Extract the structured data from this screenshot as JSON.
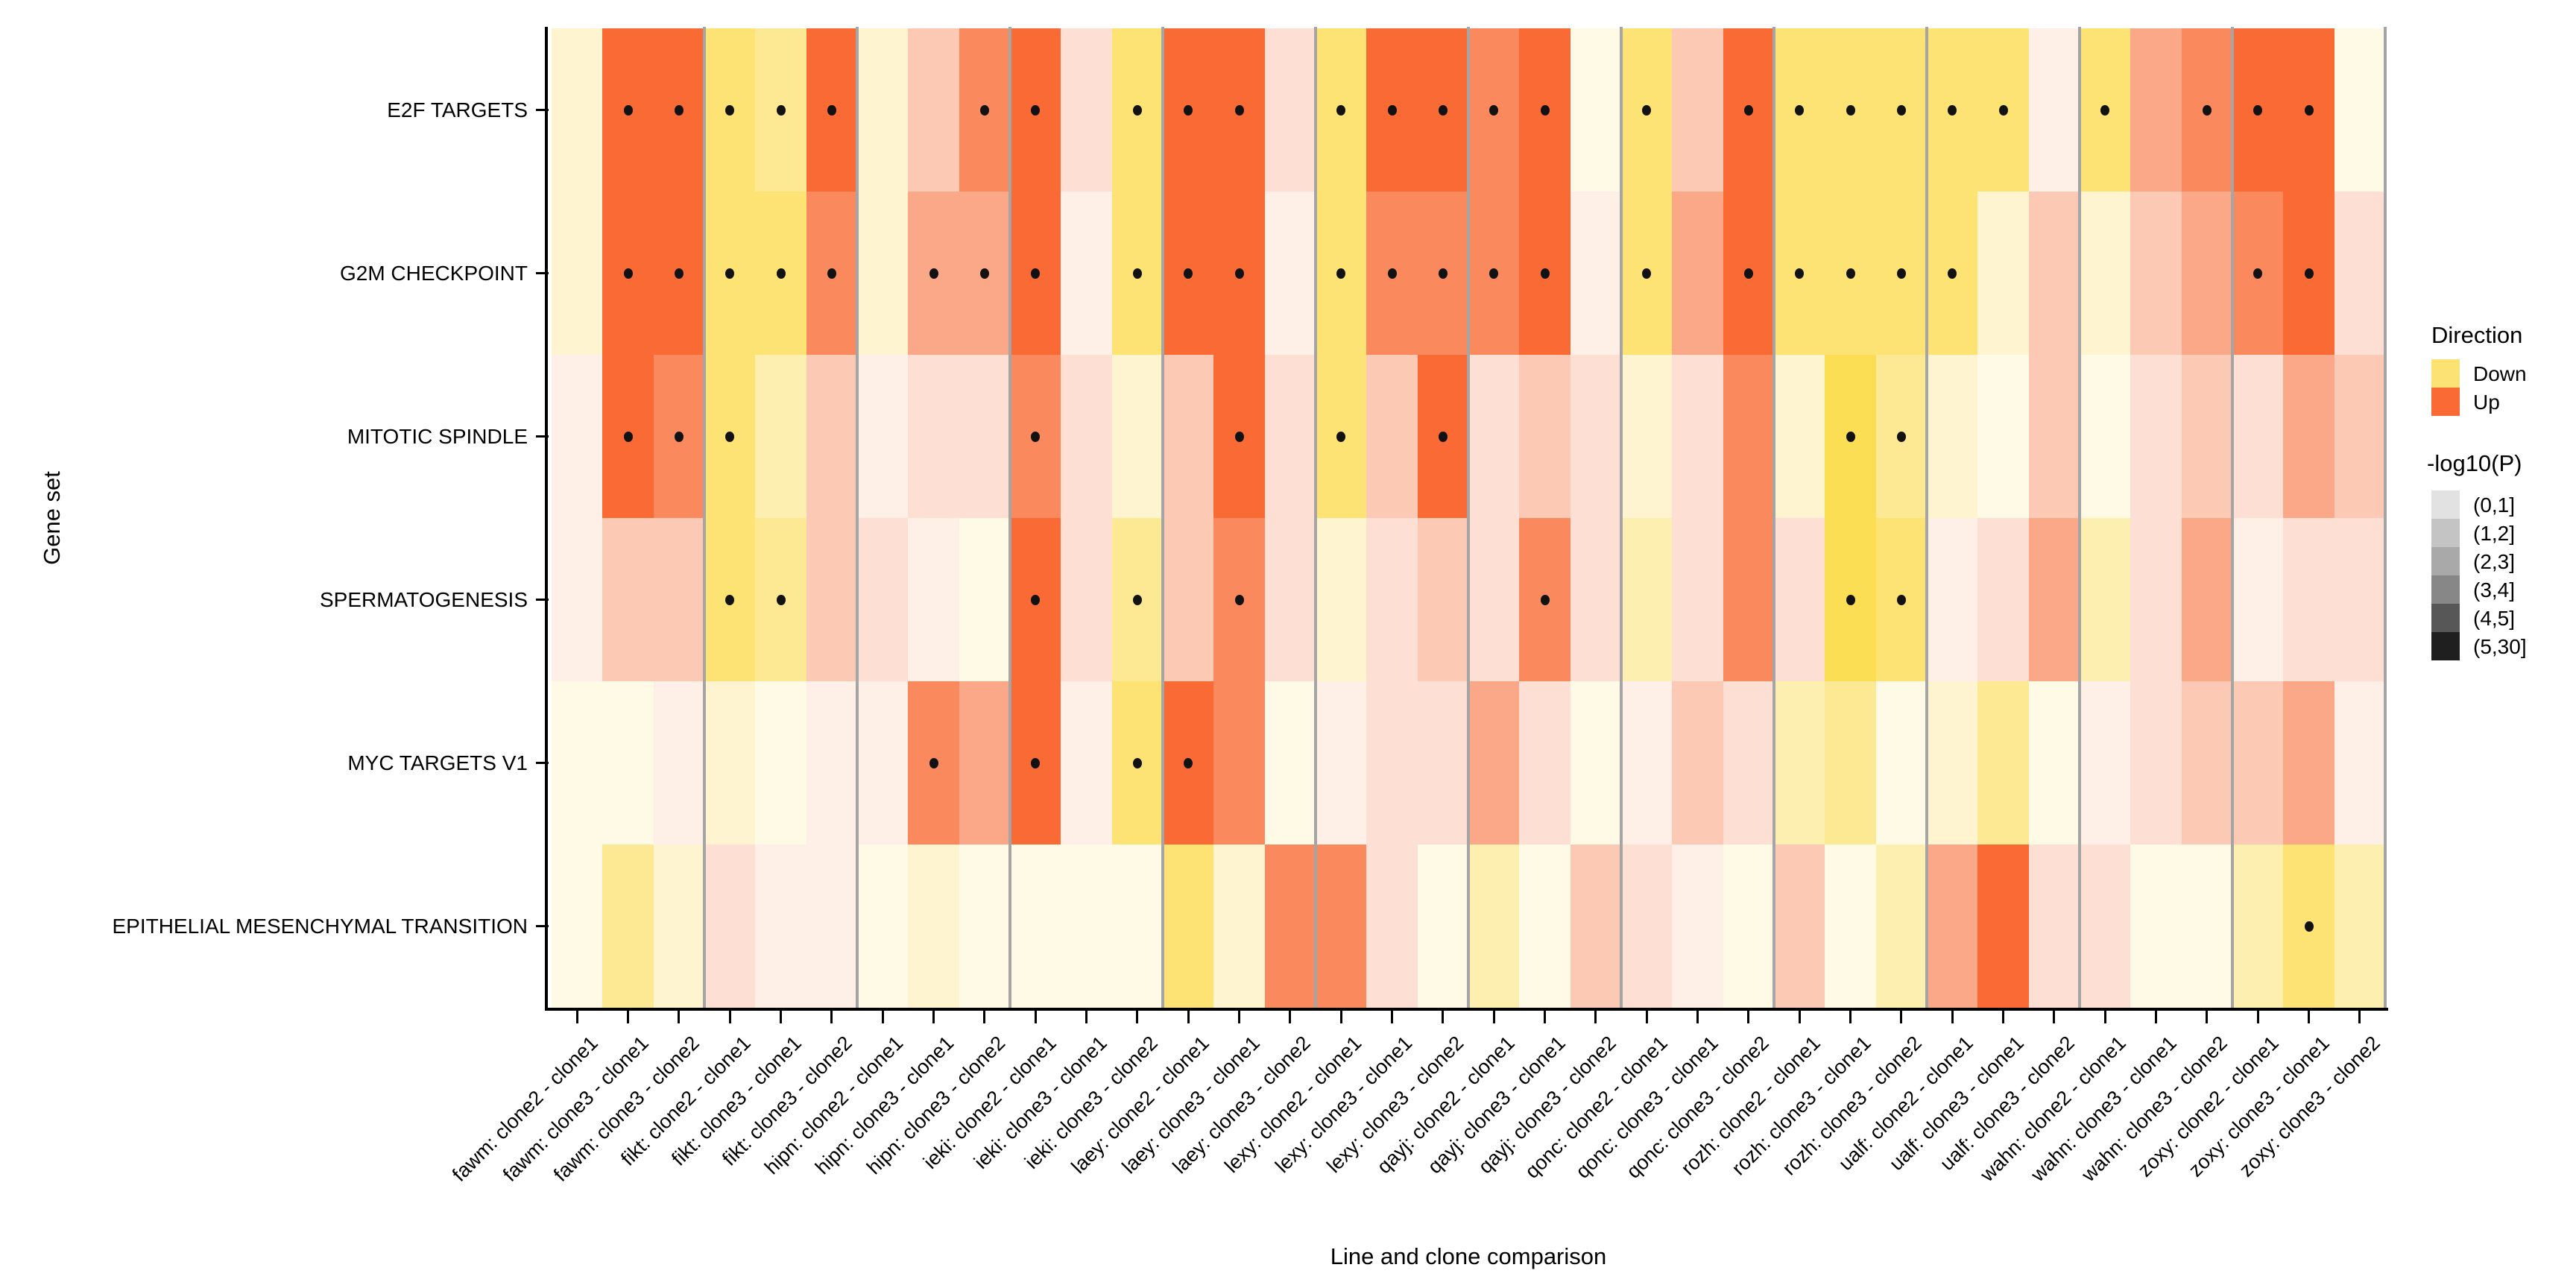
{
  "figure": {
    "xlabel": "Line and clone comparison",
    "ylabel": "Gene set"
  },
  "legend": {
    "direction": {
      "title": "Direction",
      "items": [
        {
          "label": "Down",
          "color": "#FCE273"
        },
        {
          "label": "Up",
          "color": "#F96A35"
        }
      ]
    },
    "pvalue": {
      "title": "-log10(P)",
      "items": [
        {
          "label": "(0,1]",
          "color": "#E2E2E2"
        },
        {
          "label": "(1,2]",
          "color": "#C4C4C4"
        },
        {
          "label": "(2,3]",
          "color": "#A9A9A9"
        },
        {
          "label": "(3,4]",
          "color": "#878787"
        },
        {
          "label": "(4,5]",
          "color": "#575757"
        },
        {
          "label": "(5,30]",
          "color": "#1F1F1F"
        }
      ]
    }
  },
  "chart_data": {
    "type": "heatmap",
    "title": "",
    "xlabel": "Line and clone comparison",
    "ylabel": "Gene set",
    "dot_meaning": "significant comparison marker",
    "cell_encoding": "D=Down(yellow) U=Up(orange), digit 1-6 = -log10(P) opacity bin (0,1],(1,2],(2,3],(3,4],(4,5],(5,30], trailing * = dot",
    "palette": {
      "D": {
        "1": "#FEFAE6",
        "2": "#FEF4CF",
        "3": "#FDEFB0",
        "4": "#FDE994",
        "5": "#FDE373",
        "6": "#FCDE55"
      },
      "U": {
        "1": "#FEEFE7",
        "2": "#FDDFD4",
        "3": "#FCC9B4",
        "4": "#FBA888",
        "5": "#FA8A5E",
        "6": "#F96A35"
      }
    },
    "group_size": 3,
    "categories": [
      "fawm: clone2 - clone1",
      "fawm: clone3 - clone1",
      "fawm: clone3 - clone2",
      "fikt: clone2 - clone1",
      "fikt: clone3 - clone1",
      "fikt: clone3 - clone2",
      "hipn: clone2 - clone1",
      "hipn: clone3 - clone1",
      "hipn: clone3 - clone2",
      "ieki: clone2 - clone1",
      "ieki: clone3 - clone1",
      "ieki: clone3 - clone2",
      "laey: clone2 - clone1",
      "laey: clone3 - clone1",
      "laey: clone3 - clone2",
      "lexy: clone2 - clone1",
      "lexy: clone3 - clone1",
      "lexy: clone3 - clone2",
      "qayj: clone2 - clone1",
      "qayj: clone3 - clone1",
      "qayj: clone3 - clone2",
      "qonc: clone2 - clone1",
      "qonc: clone3 - clone1",
      "qonc: clone3 - clone2",
      "rozh: clone2 - clone1",
      "rozh: clone3 - clone1",
      "rozh: clone3 - clone2",
      "ualf: clone2 - clone1",
      "ualf: clone3 - clone1",
      "ualf: clone3 - clone2",
      "wahn: clone2 - clone1",
      "wahn: clone3 - clone1",
      "wahn: clone3 - clone2",
      "zoxy: clone2 - clone1",
      "zoxy: clone3 - clone1",
      "zoxy: clone3 - clone2"
    ],
    "rows": [
      {
        "label": "E2F TARGETS",
        "cells": [
          "D2",
          "U6*",
          "U6*",
          "D5*",
          "D4*",
          "U6*",
          "D2",
          "U3",
          "U5*",
          "U6*",
          "U2",
          "D5*",
          "U6*",
          "U6*",
          "U2",
          "D5*",
          "U6*",
          "U6*",
          "U5*",
          "U6*",
          "D1",
          "D5*",
          "U3",
          "U6*",
          "D5*",
          "D5*",
          "D5*",
          "D5*",
          "D5*",
          "U1",
          "D5*",
          "U4",
          "U5*",
          "U6*",
          "U6*",
          "D1"
        ]
      },
      {
        "label": "G2M CHECKPOINT",
        "cells": [
          "D2",
          "U6*",
          "U6*",
          "D5*",
          "D5*",
          "U5*",
          "D2",
          "U4*",
          "U4*",
          "U6*",
          "U1",
          "D5*",
          "U6*",
          "U6*",
          "U1",
          "D5*",
          "U5*",
          "U5*",
          "U5*",
          "U6*",
          "U1",
          "D5*",
          "U4",
          "U6*",
          "D5*",
          "D5*",
          "D5*",
          "D5*",
          "D2",
          "U3",
          "D2",
          "U3",
          "U4",
          "U5*",
          "U6*",
          "U2"
        ]
      },
      {
        "label": "MITOTIC SPINDLE",
        "cells": [
          "U1",
          "U6*",
          "U5*",
          "D5*",
          "D3",
          "U3",
          "U1",
          "U2",
          "U2",
          "U5*",
          "U2",
          "D2",
          "U3",
          "U6*",
          "U2",
          "D5*",
          "U3",
          "U6*",
          "U2",
          "U3",
          "U2",
          "D2",
          "U2",
          "U5",
          "D2",
          "D6*",
          "D4*",
          "D2",
          "D1",
          "U3",
          "D1",
          "U2",
          "U3",
          "U2",
          "U4",
          "U3"
        ]
      },
      {
        "label": "SPERMATOGENESIS",
        "cells": [
          "U1",
          "U3",
          "U3",
          "D5*",
          "D4*",
          "U3",
          "U2",
          "U1",
          "D1",
          "U6*",
          "U2",
          "D4*",
          "U3",
          "U5*",
          "U2",
          "D2",
          "U2",
          "U3",
          "U2",
          "U5*",
          "U2",
          "D3",
          "U2",
          "U5",
          "U2",
          "D6*",
          "D5*",
          "U1",
          "U2",
          "U4",
          "D3",
          "U2",
          "U4",
          "U1",
          "U2",
          "U2"
        ]
      },
      {
        "label": "MYC TARGETS V1",
        "cells": [
          "D1",
          "D1",
          "U1",
          "D2",
          "D1",
          "U1",
          "U1",
          "U5*",
          "U4",
          "U6*",
          "U1",
          "D5*",
          "U6*",
          "U5",
          "D1",
          "U1",
          "U2",
          "U2",
          "U4",
          "U2",
          "D1",
          "U1",
          "U3",
          "U2",
          "D3",
          "D4",
          "D1",
          "D2",
          "D4",
          "D1",
          "U1",
          "U2",
          "U3",
          "U3",
          "U4",
          "U1"
        ]
      },
      {
        "label": "EPITHELIAL MESENCHYMAL TRANSITION",
        "cells": [
          "D1",
          "D4",
          "D2",
          "U2",
          "U1",
          "U1",
          "D1",
          "D2",
          "D1",
          "D1",
          "D1",
          "D1",
          "D5",
          "D2",
          "U5",
          "U5",
          "U2",
          "D1",
          "D3",
          "D1",
          "U3",
          "U2",
          "U1",
          "D1",
          "U3",
          "D1",
          "D3",
          "U4",
          "U6",
          "U2",
          "U2",
          "D1",
          "D1",
          "D3",
          "D5*",
          "D3"
        ]
      }
    ]
  }
}
